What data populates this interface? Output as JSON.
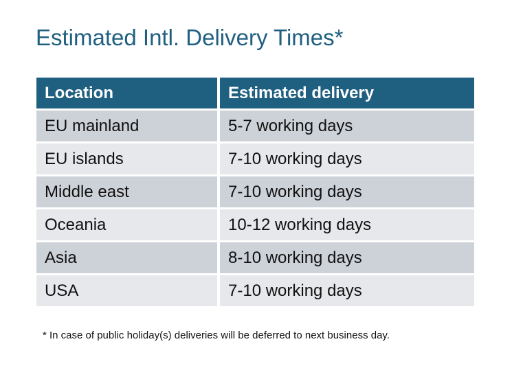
{
  "title": "Estimated Intl. Delivery Times*",
  "table": {
    "headers": [
      "Location",
      "Estimated delivery"
    ],
    "rows": [
      [
        "EU mainland",
        "5-7 working days"
      ],
      [
        "EU islands",
        "7-10 working days"
      ],
      [
        "Middle east",
        "7-10 working days"
      ],
      [
        "Oceania",
        "10-12 working days"
      ],
      [
        "Asia",
        "8-10 working days"
      ],
      [
        "USA",
        "7-10 working days"
      ]
    ]
  },
  "footnote": "* In case of public holiday(s) deliveries will be deferred to next business day.",
  "colors": {
    "header_bg": "#1F5F80",
    "title": "#1F5F80",
    "row_dark": "#CDD1D8",
    "row_light": "#E6E8EB"
  }
}
